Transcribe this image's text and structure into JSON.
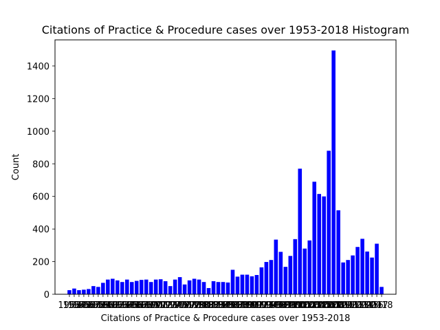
{
  "chart_data": {
    "type": "bar",
    "title": "Citations of Practice & Procedure cases over 1953-2018 Histogram",
    "xlabel": "Citations of Practice & Procedure cases over 1953-2018",
    "ylabel": "Count",
    "ylim": [
      0,
      1560
    ],
    "yticks": [
      0,
      200,
      400,
      600,
      800,
      1000,
      1200,
      1400
    ],
    "grid": false,
    "bar_color": "#0000ff",
    "x": [
      1953,
      1954,
      1955,
      1956,
      1957,
      1958,
      1959,
      1960,
      1961,
      1962,
      1963,
      1964,
      1965,
      1966,
      1967,
      1968,
      1969,
      1970,
      1971,
      1972,
      1973,
      1974,
      1975,
      1976,
      1977,
      1978,
      1979,
      1980,
      1981,
      1982,
      1983,
      1984,
      1985,
      1986,
      1987,
      1988,
      1989,
      1990,
      1991,
      1992,
      1993,
      1994,
      1995,
      1996,
      1997,
      1998,
      1999,
      2000,
      2001,
      2002,
      2003,
      2004,
      2005,
      2006,
      2007,
      2008,
      2009,
      2010,
      2011,
      2012,
      2013,
      2014,
      2015,
      2016,
      2017,
      2018
    ],
    "values": [
      25,
      35,
      25,
      28,
      32,
      50,
      45,
      70,
      90,
      95,
      85,
      75,
      90,
      75,
      82,
      88,
      90,
      75,
      90,
      92,
      80,
      50,
      90,
      105,
      60,
      85,
      95,
      90,
      75,
      38,
      80,
      75,
      75,
      72,
      150,
      108,
      120,
      120,
      110,
      118,
      165,
      198,
      210,
      335,
      260,
      168,
      235,
      338,
      770,
      280,
      330,
      690,
      615,
      600,
      880,
      1495,
      515,
      195,
      210,
      238,
      290,
      340,
      262,
      225,
      310,
      45
    ]
  }
}
